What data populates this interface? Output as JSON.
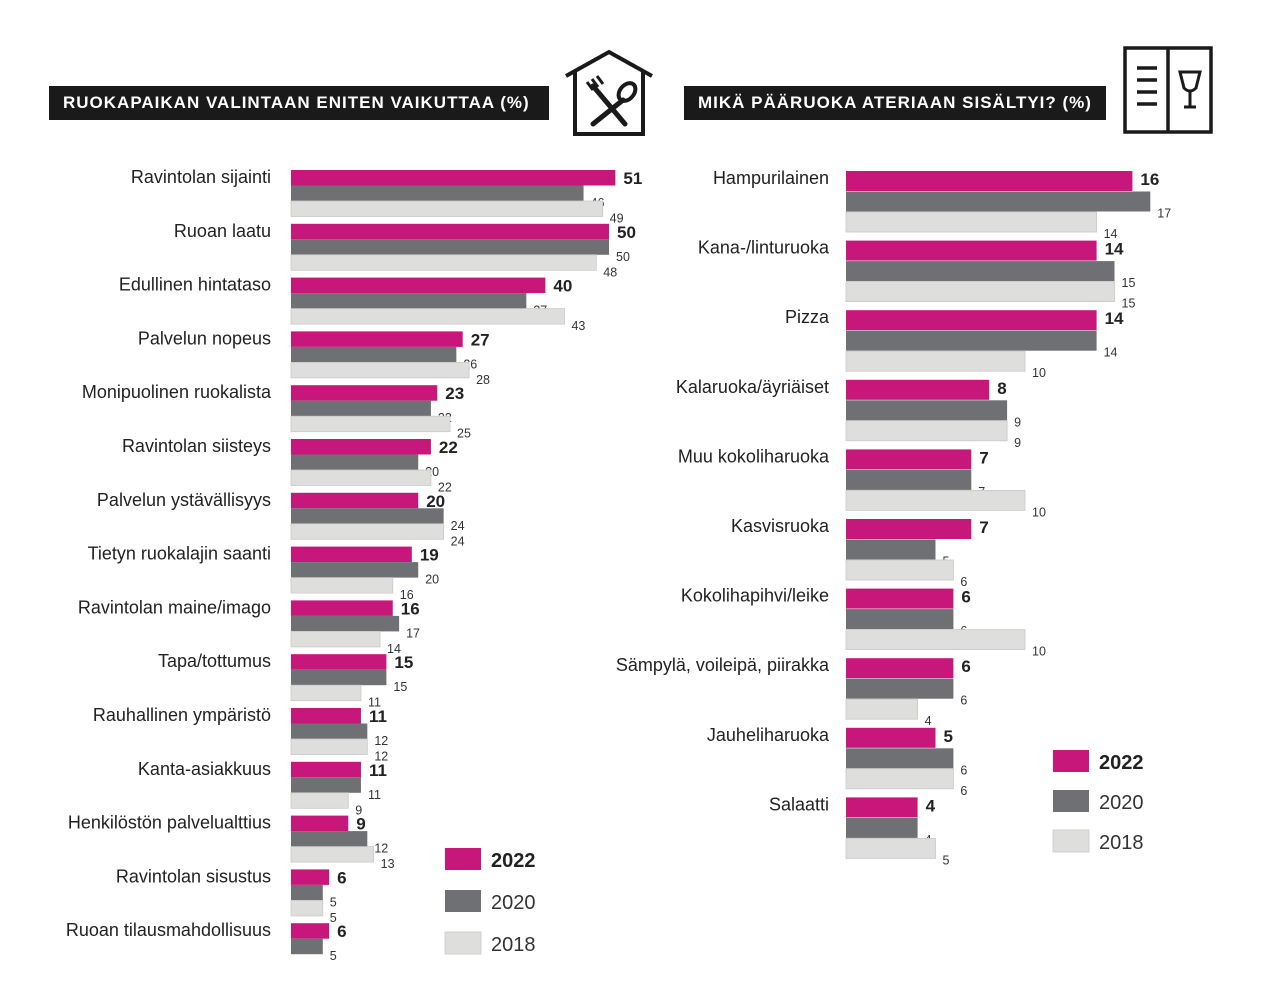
{
  "colors": {
    "2022": "#c8177a",
    "2020": "#6e7073",
    "2018": "#dededc"
  },
  "icons": [
    "restaurant-fork-spoon-icon",
    "menu-wine-glass-icon"
  ],
  "chart_data": [
    {
      "type": "bar",
      "orientation": "horizontal",
      "title": "RUOKAPAIKAN VALINTAAN ENITEN VAIKUTTAA (%)",
      "categories": [
        "Ravintolan sijainti",
        "Ruoan laatu",
        "Edullinen hintataso",
        "Palvelun nopeus",
        "Monipuolinen ruokalista",
        "Ravintolan siisteys",
        "Palvelun ystävällisyys",
        "Tietyn ruokalajin saanti",
        "Ravintolan maine/imago",
        "Tapa/tottumus",
        "Rauhallinen ympäristö",
        "Kanta-asiakkuus",
        "Henkilöstön palvelualttius",
        "Ravintolan sisustus",
        "Ruoan tilausmahdollisuus"
      ],
      "series": [
        {
          "name": "2022",
          "values": [
            51,
            50,
            40,
            27,
            23,
            22,
            20,
            19,
            16,
            15,
            11,
            11,
            9,
            6,
            6
          ]
        },
        {
          "name": "2020",
          "values": [
            46,
            50,
            37,
            26,
            22,
            20,
            24,
            20,
            17,
            15,
            12,
            11,
            12,
            5,
            5
          ]
        },
        {
          "name": "2018",
          "values": [
            49,
            48,
            43,
            28,
            25,
            22,
            24,
            16,
            14,
            11,
            12,
            9,
            13,
            5,
            null
          ]
        }
      ],
      "legend": [
        "2022",
        "2020",
        "2018"
      ]
    },
    {
      "type": "bar",
      "orientation": "horizontal",
      "title": "MIKÄ PÄÄRUOKA ATERIAAN SISÄLTYI? (%)",
      "categories": [
        "Hampurilainen",
        "Kana-/linturuoka",
        "Pizza",
        "Kalaruoka/äyriäiset",
        "Muu kokoliharuoka",
        "Kasvisruoka",
        "Kokolihapihvi/leike",
        "Sämpylä, voileipä, piirakka",
        "Jauheliharuoka",
        "Salaatti"
      ],
      "series": [
        {
          "name": "2022",
          "values": [
            16,
            14,
            14,
            8,
            7,
            7,
            6,
            6,
            5,
            4
          ]
        },
        {
          "name": "2020",
          "values": [
            17,
            15,
            14,
            9,
            7,
            5,
            6,
            6,
            6,
            4
          ]
        },
        {
          "name": "2018",
          "values": [
            14,
            15,
            10,
            9,
            10,
            6,
            10,
            4,
            6,
            5
          ]
        }
      ],
      "legend": [
        "2022",
        "2020",
        "2018"
      ]
    }
  ]
}
